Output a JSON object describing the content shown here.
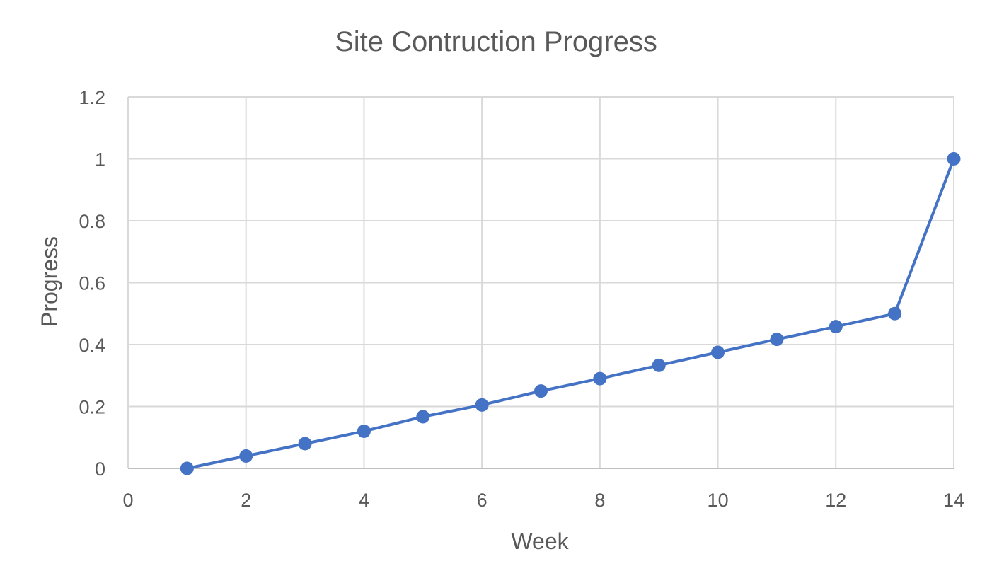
{
  "chart_data": {
    "type": "scatter",
    "title": "Site Contruction Progress",
    "xlabel": "Week",
    "ylabel": "Progress",
    "xlim": [
      0,
      14
    ],
    "ylim": [
      0,
      1.2
    ],
    "x_ticks": [
      0,
      2,
      4,
      6,
      8,
      10,
      12,
      14
    ],
    "x_tick_labels": [
      "0",
      "2",
      "4",
      "6",
      "8",
      "10",
      "12",
      "14"
    ],
    "y_ticks": [
      0,
      0.2,
      0.4,
      0.6,
      0.8,
      1,
      1.2
    ],
    "y_tick_labels": [
      "0",
      "0.2",
      "0.4",
      "0.6",
      "0.8",
      "1",
      "1.2"
    ],
    "grid": true,
    "legend": "none",
    "series": [
      {
        "color": "#4472c4",
        "style": "line-with-markers",
        "x": [
          1,
          2,
          3,
          4,
          5,
          6,
          7,
          8,
          9,
          10,
          11,
          12,
          13,
          14
        ],
        "y": [
          0,
          0.04,
          0.08,
          0.12,
          0.167,
          0.205,
          0.25,
          0.29,
          0.333,
          0.375,
          0.417,
          0.458,
          0.5,
          1.0
        ]
      }
    ]
  }
}
